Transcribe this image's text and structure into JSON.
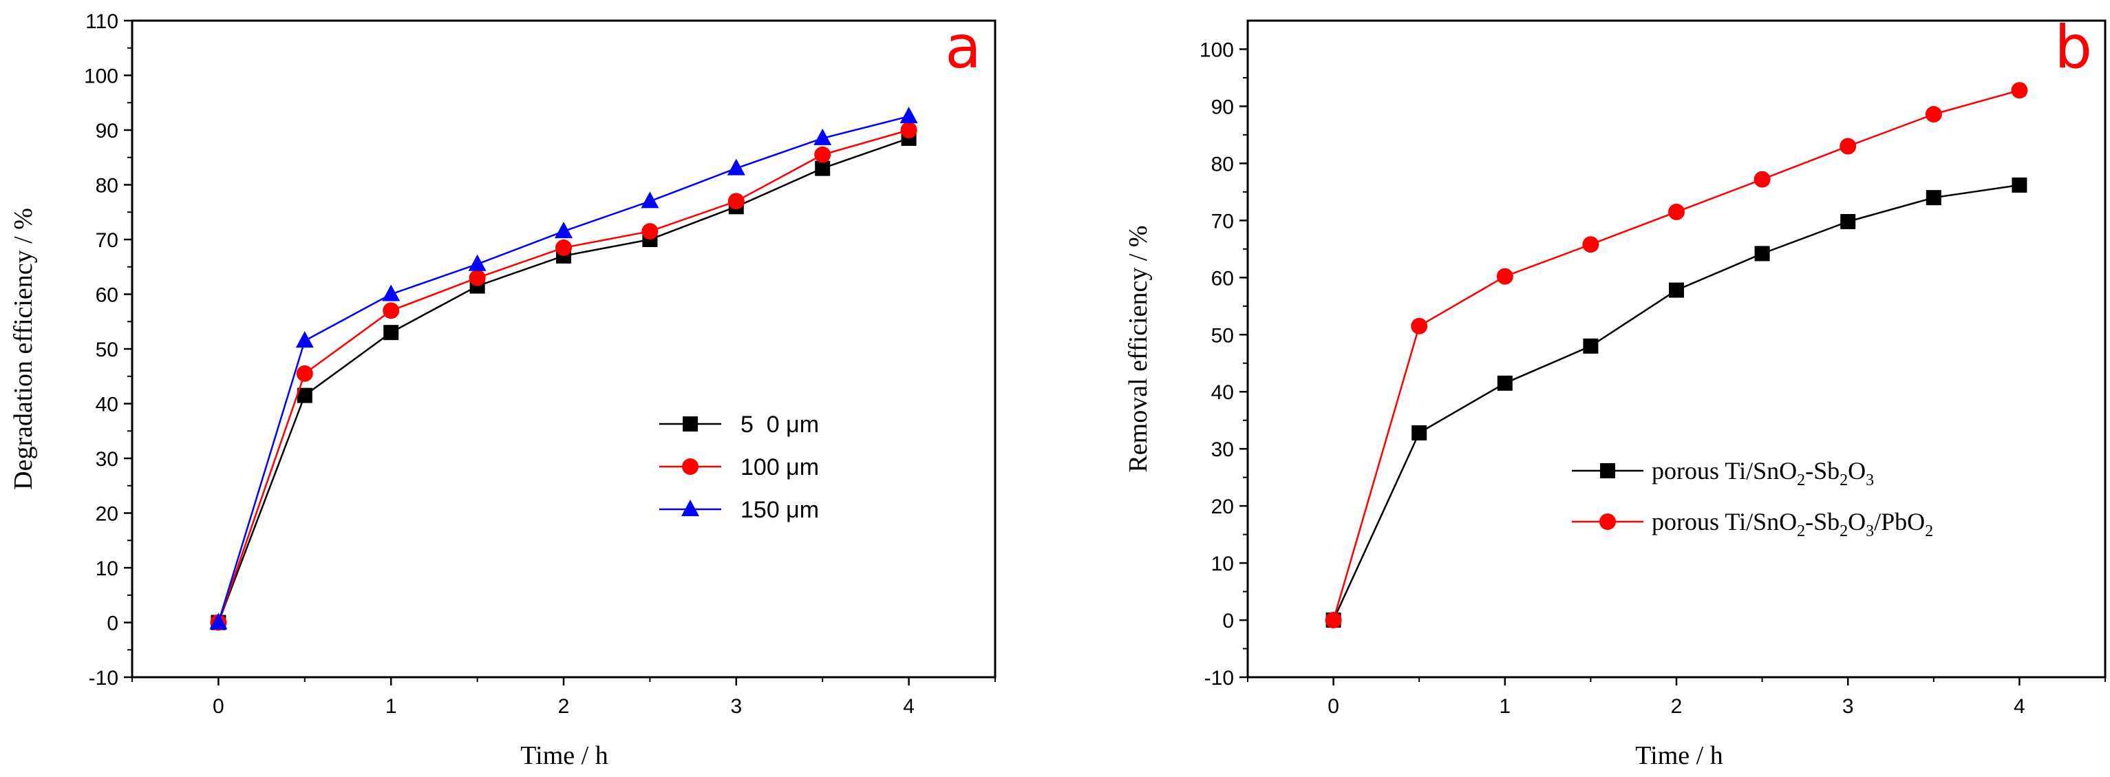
{
  "chart_data": [
    {
      "type": "line",
      "panel_label": "a",
      "xlabel": "Time / h",
      "ylabel": "Degradation efficiency / %",
      "xlim": [
        -0.5,
        4.5
      ],
      "ylim": [
        -10,
        110
      ],
      "xticks": [
        0,
        1,
        2,
        3,
        4
      ],
      "yticks": [
        -10,
        0,
        10,
        20,
        30,
        40,
        50,
        60,
        70,
        80,
        90,
        100,
        110
      ],
      "grid": false,
      "legend_position": "center-right",
      "x": [
        0,
        0.5,
        1,
        1.5,
        2,
        2.5,
        3,
        3.5,
        4
      ],
      "series": [
        {
          "name": "5  0 μm",
          "color": "#000000",
          "marker": "square",
          "values": [
            0,
            41.5,
            53,
            61.5,
            67,
            70,
            76,
            83,
            88.5
          ]
        },
        {
          "name": "100 μm",
          "color": "#ff0000",
          "marker": "circle",
          "values": [
            0,
            45.5,
            57,
            63,
            68.5,
            71.5,
            77,
            85.5,
            90
          ]
        },
        {
          "name": "150 μm",
          "color": "#0000ff",
          "marker": "triangle",
          "values": [
            0,
            51.5,
            60,
            65.5,
            71.5,
            77,
            83,
            88.5,
            92.5
          ]
        }
      ]
    },
    {
      "type": "line",
      "panel_label": "b",
      "xlabel": "Time / h",
      "ylabel": "Removal efficiency / %",
      "xlim": [
        -0.5,
        4.5
      ],
      "ylim": [
        -10,
        105
      ],
      "xticks": [
        0,
        1,
        2,
        3,
        4
      ],
      "yticks": [
        -10,
        0,
        10,
        20,
        30,
        40,
        50,
        60,
        70,
        80,
        90,
        100
      ],
      "grid": false,
      "legend_position": "lower-right",
      "x": [
        0,
        0.5,
        1,
        1.5,
        2,
        2.5,
        3,
        3.5,
        4
      ],
      "series": [
        {
          "name": "porous Ti/SnO2-Sb2O3",
          "color": "#000000",
          "marker": "square",
          "values": [
            0,
            32.8,
            41.5,
            48,
            57.8,
            64.2,
            69.8,
            74,
            76.2
          ]
        },
        {
          "name": "porous Ti/SnO2-Sb2O3/PbO2",
          "color": "#ff0000",
          "marker": "circle",
          "values": [
            0,
            51.5,
            60.2,
            65.8,
            71.5,
            77.2,
            83,
            88.6,
            92.8
          ]
        }
      ]
    }
  ]
}
